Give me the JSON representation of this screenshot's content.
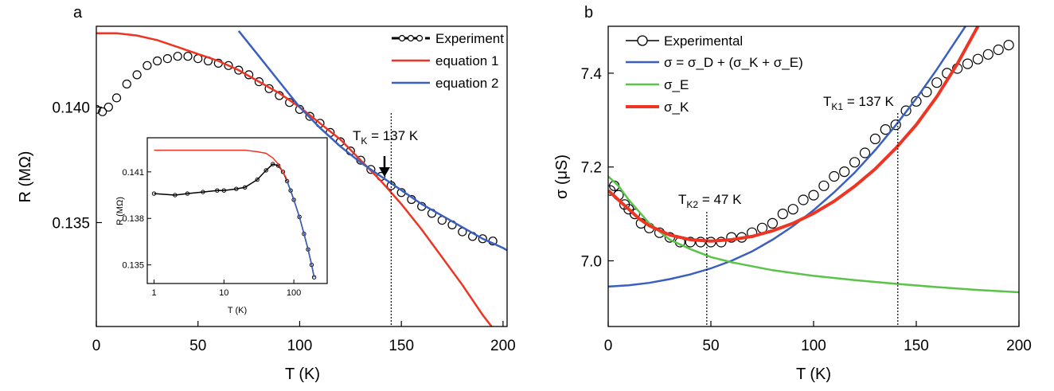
{
  "colors": {
    "experiment": "#000000",
    "equation1": "#ee3524",
    "equation2": "#3a5fbf",
    "sigma_E": "#5bc24a",
    "sigma_K": "#ee3524",
    "sigma_total": "#3a5fbf"
  },
  "chart_data": [
    {
      "panel_label": "a",
      "type": "line",
      "xlabel": "T (K)",
      "ylabel": "R (MΩ)",
      "xlim": [
        0,
        202
      ],
      "ylim": [
        0.1305,
        0.1435
      ],
      "x_ticks": [
        0,
        50,
        100,
        150,
        200
      ],
      "y_ticks": [
        0.135,
        0.14
      ],
      "y_tick_labels": [
        "0.135",
        "0.140"
      ],
      "legend_position": "top-right",
      "annotation": {
        "label": "T",
        "subscript": "K",
        "value": "= 137 K",
        "arrow_x": 140,
        "line_x": 145
      },
      "series": [
        {
          "name": "Experiment",
          "kind": "markers",
          "x": [
            0,
            3,
            6,
            10,
            15,
            20,
            25,
            30,
            35,
            40,
            45,
            50,
            55,
            60,
            65,
            70,
            75,
            80,
            85,
            90,
            95,
            100,
            105,
            110,
            115,
            120,
            125,
            130,
            135,
            140,
            145,
            150,
            155,
            160,
            165,
            170,
            175,
            180,
            185,
            190,
            195
          ],
          "y": [
            0.1399,
            0.1398,
            0.14,
            0.1404,
            0.141,
            0.1414,
            0.1418,
            0.142,
            0.1421,
            0.1422,
            0.1422,
            0.1421,
            0.142,
            0.1419,
            0.1418,
            0.1416,
            0.1414,
            0.1411,
            0.1408,
            0.1405,
            0.1402,
            0.1399,
            0.1396,
            0.1393,
            0.1389,
            0.1385,
            0.1381,
            0.1377,
            0.1373,
            0.137,
            0.1366,
            0.1363,
            0.136,
            0.1357,
            0.1354,
            0.1351,
            0.1349,
            0.1346,
            0.1344,
            0.1343,
            0.1342
          ]
        },
        {
          "name": "equation 1",
          "kind": "line",
          "x": [
            0,
            10,
            20,
            30,
            40,
            50,
            60,
            70,
            80,
            90,
            100,
            110,
            120,
            130,
            140,
            150,
            160,
            170,
            180,
            190,
            197
          ],
          "y": [
            0.1432,
            0.1432,
            0.1431,
            0.1429,
            0.1426,
            0.1423,
            0.142,
            0.1416,
            0.1411,
            0.1406,
            0.14,
            0.1393,
            0.1386,
            0.1377,
            0.1368,
            0.1358,
            0.1347,
            0.1335,
            0.1323,
            0.131,
            0.1302
          ]
        },
        {
          "name": "equation 2",
          "kind": "line",
          "x": [
            70,
            80,
            90,
            100,
            110,
            120,
            130,
            140,
            150,
            160,
            170,
            180,
            190,
            200,
            202
          ],
          "y": [
            0.1433,
            0.1422,
            0.1411,
            0.14,
            0.1391,
            0.1383,
            0.1376,
            0.137,
            0.1364,
            0.1358,
            0.1353,
            0.1348,
            0.1343,
            0.1339,
            0.1338
          ]
        }
      ],
      "inset": {
        "xlabel": "T (K)",
        "ylabel": "R (MΩ)",
        "x_scale": "log",
        "xlim": [
          0.8,
          300
        ],
        "ylim": [
          0.1338,
          0.1432
        ],
        "x_ticks": [
          1,
          10,
          100
        ],
        "y_ticks": [
          0.135,
          0.138,
          0.141
        ],
        "y_tick_labels": [
          "0.135",
          "0.138",
          "0.141"
        ],
        "series": [
          {
            "name": "Experiment",
            "x": [
              1,
              2,
              3,
              5,
              8,
              10,
              15,
              20,
              30,
              40,
              50,
              60,
              70,
              80,
              90,
              100,
              120,
              140,
              160,
              180,
              195
            ],
            "y": [
              0.1396,
              0.1395,
              0.1396,
              0.1397,
              0.1398,
              0.1398,
              0.1399,
              0.14,
              0.1405,
              0.1411,
              0.1415,
              0.1414,
              0.141,
              0.1404,
              0.1398,
              0.1392,
              0.1381,
              0.137,
              0.136,
              0.135,
              0.1342
            ]
          },
          {
            "name": "equation 1",
            "x": [
              1,
              2,
              5,
              10,
              20,
              30,
              40,
              50,
              60,
              70,
              80
            ],
            "y": [
              0.1424,
              0.1424,
              0.1424,
              0.1424,
              0.1424,
              0.1423,
              0.1422,
              0.1419,
              0.1415,
              0.141,
              0.1405
            ]
          },
          {
            "name": "equation 2",
            "x": [
              80,
              100,
              120,
              140,
              160,
              180,
              195
            ],
            "y": [
              0.1404,
              0.1392,
              0.1381,
              0.137,
              0.136,
              0.135,
              0.1342
            ]
          }
        ]
      }
    },
    {
      "panel_label": "b",
      "type": "line",
      "xlabel": "T (K)",
      "ylabel": "σ (μS)",
      "xlim": [
        0,
        200
      ],
      "ylim": [
        6.86,
        7.5
      ],
      "x_ticks": [
        0,
        50,
        100,
        150,
        200
      ],
      "y_ticks": [
        7.0,
        7.2,
        7.4
      ],
      "y_tick_labels": [
        "7.0",
        "7.2",
        "7.4"
      ],
      "legend_position": "top-left",
      "annotations": [
        {
          "label": "T",
          "subscript": "K1",
          "value": "= 137 K",
          "line_x": 141
        },
        {
          "label": "T",
          "subscript": "K2",
          "value": "= 47 K",
          "line_x": 48
        }
      ],
      "series": [
        {
          "name": "Experimental",
          "kind": "markers",
          "x": [
            1,
            3,
            5,
            8,
            10,
            13,
            16,
            20,
            25,
            30,
            35,
            40,
            45,
            50,
            55,
            60,
            65,
            70,
            75,
            80,
            85,
            90,
            95,
            100,
            105,
            110,
            115,
            120,
            125,
            130,
            135,
            140,
            145,
            150,
            155,
            160,
            165,
            170,
            175,
            180,
            185,
            190,
            195
          ],
          "y": [
            7.15,
            7.16,
            7.14,
            7.12,
            7.11,
            7.1,
            7.08,
            7.07,
            7.06,
            7.05,
            7.04,
            7.04,
            7.04,
            7.04,
            7.04,
            7.05,
            7.05,
            7.06,
            7.07,
            7.08,
            7.1,
            7.11,
            7.13,
            7.14,
            7.16,
            7.18,
            7.19,
            7.21,
            7.23,
            7.26,
            7.28,
            7.29,
            7.32,
            7.34,
            7.36,
            7.38,
            7.4,
            7.41,
            7.42,
            7.43,
            7.44,
            7.45,
            7.46
          ]
        },
        {
          "name": "σ = σ_D + (σ_K + σ_E)",
          "kind": "line",
          "x": [
            0,
            10,
            20,
            30,
            40,
            50,
            60,
            70,
            80,
            90,
            100,
            110,
            120,
            130,
            140,
            150,
            160,
            170,
            177
          ],
          "y": [
            6.945,
            6.948,
            6.953,
            6.961,
            6.971,
            6.984,
            7.0,
            7.02,
            7.045,
            7.074,
            7.108,
            7.146,
            7.188,
            7.236,
            7.289,
            7.346,
            7.408,
            7.474,
            7.52
          ]
        },
        {
          "name": "σ_E",
          "kind": "line",
          "x": [
            0,
            5,
            10,
            20,
            30,
            40,
            50,
            60,
            80,
            100,
            120,
            140,
            160,
            180,
            200
          ],
          "y": [
            7.18,
            7.16,
            7.13,
            7.08,
            7.045,
            7.025,
            7.008,
            6.997,
            6.98,
            6.968,
            6.959,
            6.951,
            6.944,
            6.938,
            6.933
          ]
        },
        {
          "name": "σ_K",
          "kind": "line",
          "x": [
            0,
            5,
            10,
            15,
            20,
            30,
            40,
            50,
            60,
            70,
            80,
            90,
            100,
            110,
            120,
            130,
            140,
            150,
            160,
            170,
            180
          ],
          "y": [
            7.15,
            7.13,
            7.11,
            7.09,
            7.075,
            7.055,
            7.045,
            7.042,
            7.045,
            7.052,
            7.064,
            7.08,
            7.101,
            7.127,
            7.159,
            7.196,
            7.24,
            7.29,
            7.35,
            7.42,
            7.5
          ]
        }
      ]
    }
  ]
}
